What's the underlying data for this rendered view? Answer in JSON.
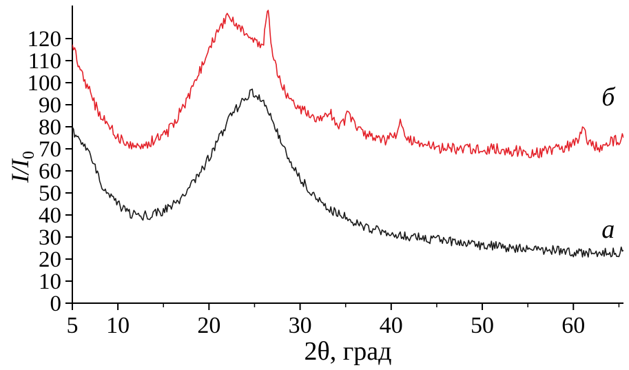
{
  "figure": {
    "ylabel_main": "I/I",
    "ylabel_sub": "0"
  },
  "chart_data": {
    "type": "line",
    "title": "",
    "xlabel": "2θ, град",
    "ylabel": "I/I0",
    "xlim": [
      5,
      65.5
    ],
    "ylim": [
      0,
      135
    ],
    "grid": false,
    "legend_position": "right-inline-labels",
    "x_ticks": [
      5,
      10,
      20,
      30,
      40,
      50,
      60
    ],
    "x_minor_ticks": [
      15,
      25,
      35,
      45,
      55,
      65
    ],
    "y_ticks": [
      0,
      10,
      20,
      30,
      40,
      50,
      60,
      70,
      80,
      90,
      100,
      110,
      120
    ],
    "axis_color": "#000000",
    "series": [
      {
        "label": "а",
        "color": "#1a1a1a",
        "noise": 2.1,
        "label_pos": [
          63.1,
          32
        ],
        "points": [
          [
            5,
            78
          ],
          [
            5.5,
            76
          ],
          [
            6,
            73
          ],
          [
            6.5,
            70
          ],
          [
            7,
            66
          ],
          [
            7.5,
            61
          ],
          [
            8,
            56
          ],
          [
            8.5,
            52
          ],
          [
            9,
            49
          ],
          [
            9.5,
            47
          ],
          [
            10,
            45
          ],
          [
            10.5,
            43
          ],
          [
            11,
            41
          ],
          [
            11.5,
            40
          ],
          [
            12,
            40
          ],
          [
            12.5,
            39
          ],
          [
            13,
            40
          ],
          [
            13.5,
            40
          ],
          [
            14,
            41
          ],
          [
            14.5,
            41
          ],
          [
            15,
            42
          ],
          [
            15.5,
            43
          ],
          [
            16,
            44
          ],
          [
            16.5,
            46
          ],
          [
            17,
            48
          ],
          [
            17.5,
            50
          ],
          [
            18,
            53
          ],
          [
            18.5,
            56
          ],
          [
            19,
            59
          ],
          [
            19.5,
            62
          ],
          [
            20,
            66
          ],
          [
            20.5,
            70
          ],
          [
            21,
            74
          ],
          [
            21.5,
            78
          ],
          [
            22,
            82
          ],
          [
            22.5,
            85
          ],
          [
            23,
            88
          ],
          [
            23.5,
            91
          ],
          [
            24,
            93
          ],
          [
            24.5,
            95
          ],
          [
            25,
            95
          ],
          [
            25.5,
            93
          ],
          [
            26,
            90
          ],
          [
            26.5,
            87
          ],
          [
            27,
            83
          ],
          [
            27.5,
            78
          ],
          [
            28,
            73
          ],
          [
            28.5,
            68
          ],
          [
            29,
            64
          ],
          [
            29.5,
            60
          ],
          [
            30,
            57
          ],
          [
            30.5,
            54
          ],
          [
            31,
            51
          ],
          [
            31.5,
            49
          ],
          [
            32,
            47
          ],
          [
            32.5,
            45
          ],
          [
            33,
            44
          ],
          [
            33.5,
            42
          ],
          [
            34,
            41
          ],
          [
            34.5,
            40
          ],
          [
            35,
            39
          ],
          [
            35.5,
            38
          ],
          [
            36,
            37
          ],
          [
            36.5,
            36
          ],
          [
            37,
            35
          ],
          [
            37.5,
            34
          ],
          [
            38,
            33
          ],
          [
            38.5,
            33
          ],
          [
            39,
            32
          ],
          [
            40,
            31
          ],
          [
            41,
            31
          ],
          [
            42,
            30
          ],
          [
            43,
            30
          ],
          [
            44,
            29
          ],
          [
            45,
            29
          ],
          [
            46,
            28
          ],
          [
            47,
            28
          ],
          [
            48,
            27
          ],
          [
            49,
            27
          ],
          [
            50,
            26
          ],
          [
            51,
            26
          ],
          [
            52,
            26
          ],
          [
            53,
            25
          ],
          [
            54,
            25
          ],
          [
            55,
            25
          ],
          [
            56,
            24
          ],
          [
            57,
            24
          ],
          [
            58,
            24
          ],
          [
            59,
            24
          ],
          [
            60,
            23
          ],
          [
            61,
            23
          ],
          [
            62,
            23
          ],
          [
            63,
            23
          ],
          [
            64,
            23
          ],
          [
            65,
            23
          ],
          [
            65.5,
            24
          ]
        ]
      },
      {
        "label": "б",
        "color": "#e32028",
        "noise": 2.5,
        "label_pos": [
          63.1,
          92
        ],
        "points": [
          [
            5,
            116
          ],
          [
            5.5,
            111
          ],
          [
            6,
            106
          ],
          [
            6.5,
            100
          ],
          [
            7,
            95
          ],
          [
            7.5,
            90
          ],
          [
            8,
            86
          ],
          [
            8.5,
            83
          ],
          [
            9,
            80
          ],
          [
            9.5,
            78
          ],
          [
            10,
            76
          ],
          [
            10.5,
            74
          ],
          [
            11,
            73
          ],
          [
            11.5,
            72
          ],
          [
            12,
            72
          ],
          [
            12.5,
            72
          ],
          [
            13,
            72
          ],
          [
            13.5,
            73
          ],
          [
            14,
            74
          ],
          [
            14.5,
            75
          ],
          [
            15,
            76
          ],
          [
            15.5,
            78
          ],
          [
            16,
            81
          ],
          [
            16.5,
            84
          ],
          [
            17,
            88
          ],
          [
            17.5,
            92
          ],
          [
            18,
            96
          ],
          [
            18.5,
            100
          ],
          [
            19,
            105
          ],
          [
            19.5,
            110
          ],
          [
            20,
            115
          ],
          [
            20.5,
            120
          ],
          [
            21,
            124
          ],
          [
            21.5,
            127
          ],
          [
            22,
            129
          ],
          [
            22.5,
            129
          ],
          [
            23,
            127
          ],
          [
            23.5,
            125
          ],
          [
            24,
            122
          ],
          [
            24.5,
            120
          ],
          [
            25,
            118
          ],
          [
            25.5,
            117
          ],
          [
            26,
            119
          ],
          [
            26.2,
            126
          ],
          [
            26.4,
            134
          ],
          [
            26.6,
            128
          ],
          [
            26.8,
            118
          ],
          [
            27,
            112
          ],
          [
            27.5,
            104
          ],
          [
            28,
            99
          ],
          [
            28.5,
            95
          ],
          [
            29,
            92
          ],
          [
            29.5,
            90
          ],
          [
            30,
            88
          ],
          [
            30.5,
            87
          ],
          [
            31,
            86
          ],
          [
            31.5,
            85
          ],
          [
            32,
            84
          ],
          [
            32.5,
            84
          ],
          [
            33,
            86
          ],
          [
            33.3,
            88
          ],
          [
            33.6,
            83
          ],
          [
            34,
            81
          ],
          [
            34.5,
            80
          ],
          [
            35,
            83
          ],
          [
            35.3,
            88
          ],
          [
            35.6,
            84
          ],
          [
            36,
            80
          ],
          [
            36.5,
            78
          ],
          [
            37,
            77
          ],
          [
            37.5,
            76
          ],
          [
            38,
            75
          ],
          [
            38.5,
            74
          ],
          [
            39,
            74
          ],
          [
            39.5,
            74
          ],
          [
            40,
            75
          ],
          [
            40.5,
            77
          ],
          [
            41,
            83
          ],
          [
            41.3,
            80
          ],
          [
            41.6,
            76
          ],
          [
            42,
            74
          ],
          [
            42.5,
            73
          ],
          [
            43,
            73
          ],
          [
            43.5,
            72
          ],
          [
            44,
            71
          ],
          [
            44.5,
            71
          ],
          [
            45,
            70
          ],
          [
            46,
            70
          ],
          [
            47,
            70
          ],
          [
            48,
            70
          ],
          [
            49,
            70
          ],
          [
            50,
            70
          ],
          [
            51,
            70
          ],
          [
            52,
            70
          ],
          [
            53,
            69
          ],
          [
            54,
            69
          ],
          [
            55,
            68
          ],
          [
            56,
            68
          ],
          [
            57,
            69
          ],
          [
            58,
            70
          ],
          [
            59,
            71
          ],
          [
            60,
            72
          ],
          [
            60.5,
            74
          ],
          [
            61,
            78
          ],
          [
            61.3,
            76
          ],
          [
            61.6,
            73
          ],
          [
            62,
            72
          ],
          [
            62.5,
            71
          ],
          [
            63,
            71
          ],
          [
            63.5,
            72
          ],
          [
            64,
            73
          ],
          [
            64.5,
            74
          ],
          [
            65,
            74
          ],
          [
            65.5,
            75
          ]
        ]
      }
    ]
  }
}
